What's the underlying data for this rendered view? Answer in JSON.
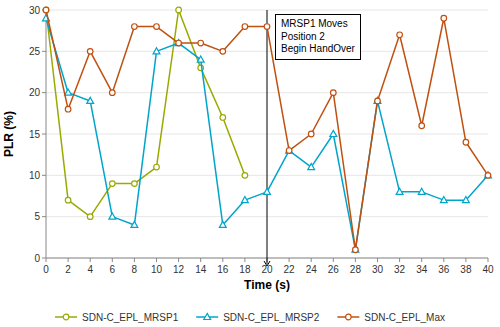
{
  "chart_data": {
    "type": "line",
    "x_label": "Time (s)",
    "y_label": "PLR (%)",
    "series": [
      {
        "name": "SDN-C_EPL_MRSP1",
        "color": "#9aaa00",
        "marker": "circle",
        "x": [
          0,
          2,
          4,
          6,
          8,
          10,
          12,
          14,
          16,
          18
        ],
        "values": [
          30,
          7,
          5,
          9,
          9,
          11,
          30,
          23,
          17,
          10
        ]
      },
      {
        "name": "SDN-C_EPL_MRSP2",
        "color": "#00a5cc",
        "marker": "triangle",
        "x": [
          0,
          2,
          4,
          6,
          8,
          10,
          12,
          14,
          16,
          18,
          20,
          22,
          24,
          26,
          28,
          30,
          32,
          34,
          36,
          38,
          40
        ],
        "values": [
          29,
          20,
          19,
          5,
          4,
          25,
          26,
          24,
          4,
          7,
          8,
          13,
          11,
          15,
          1,
          19,
          8,
          8,
          7,
          7,
          10
        ]
      },
      {
        "name": "SDN-C_EPL_Max",
        "color": "#c05010",
        "marker": "circle",
        "x": [
          0,
          2,
          4,
          6,
          8,
          10,
          12,
          14,
          16,
          18,
          20,
          22,
          24,
          26,
          28,
          30,
          32,
          34,
          36,
          38,
          40
        ],
        "values": [
          30,
          18,
          25,
          20,
          28,
          28,
          26,
          26,
          25,
          28,
          28,
          13,
          15,
          20,
          1,
          19,
          27,
          16,
          29,
          14,
          10
        ]
      }
    ],
    "annotations": [
      {
        "text": "MRSP1 Moves\nPosition 2\nBegin HandOver",
        "x": 20
      }
    ],
    "xlim": [
      0,
      40
    ],
    "ylim": [
      0,
      30
    ],
    "xticks": [
      0,
      2,
      4,
      6,
      8,
      10,
      12,
      14,
      16,
      18,
      20,
      22,
      24,
      26,
      28,
      30,
      32,
      34,
      36,
      38,
      40
    ],
    "yticks": [
      0,
      5,
      10,
      15,
      20,
      25,
      30
    ],
    "grid": true,
    "legend": "bottom"
  }
}
